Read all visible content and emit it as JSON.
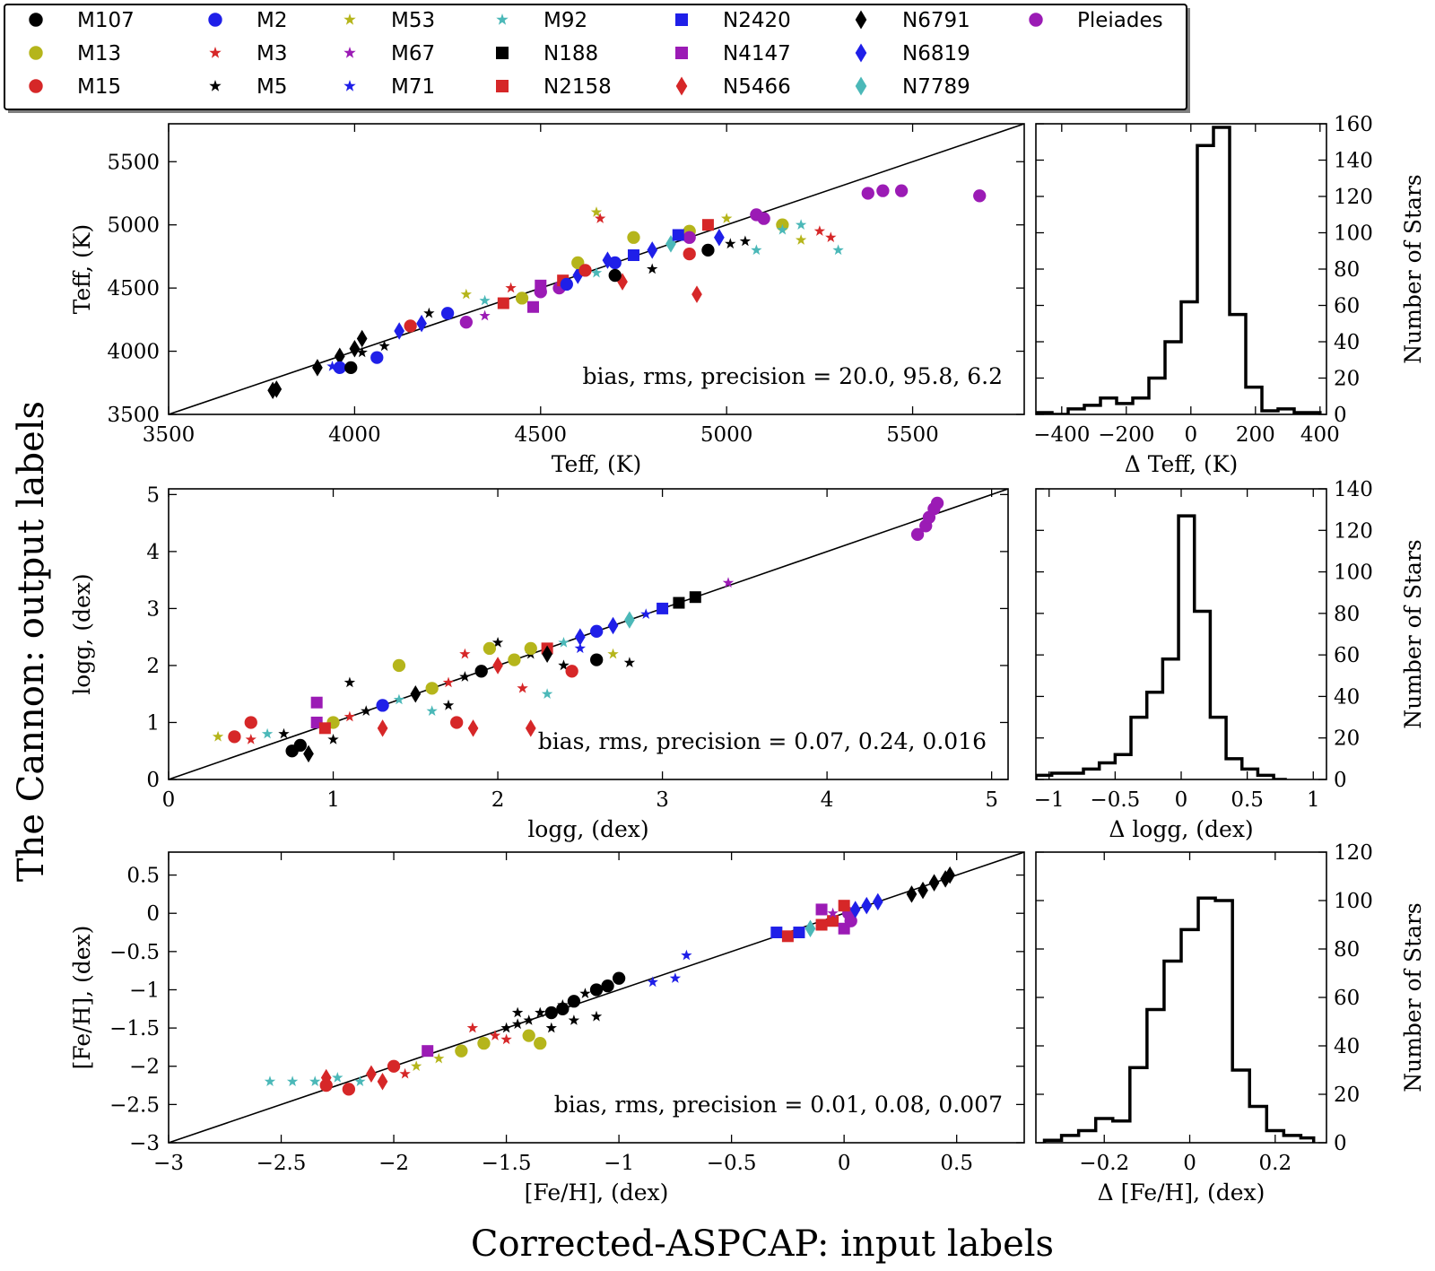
{
  "figure": {
    "ylabel": "The Cannon: output labels",
    "xlabel": "Corrected-ASPCAP: input labels"
  },
  "legend": {
    "placement": "top",
    "entries": [
      {
        "name": "M107",
        "color": "#000000",
        "marker": "circle"
      },
      {
        "name": "M13",
        "color": "#b5b51b",
        "marker": "circle"
      },
      {
        "name": "M15",
        "color": "#d62728",
        "marker": "circle"
      },
      {
        "name": "M2",
        "color": "#1f1fe8",
        "marker": "circle"
      },
      {
        "name": "M3",
        "color": "#d62728",
        "marker": "star"
      },
      {
        "name": "M5",
        "color": "#000000",
        "marker": "star"
      },
      {
        "name": "M53",
        "color": "#b5b51b",
        "marker": "star"
      },
      {
        "name": "M67",
        "color": "#9b1bb5",
        "marker": "star"
      },
      {
        "name": "M71",
        "color": "#1f1fe8",
        "marker": "star"
      },
      {
        "name": "M92",
        "color": "#4bb8b8",
        "marker": "star"
      },
      {
        "name": "N188",
        "color": "#000000",
        "marker": "square"
      },
      {
        "name": "N2158",
        "color": "#d62728",
        "marker": "square"
      },
      {
        "name": "N2420",
        "color": "#1f1fe8",
        "marker": "square"
      },
      {
        "name": "N4147",
        "color": "#9b1bb5",
        "marker": "square"
      },
      {
        "name": "N5466",
        "color": "#d62728",
        "marker": "diamond"
      },
      {
        "name": "N6791",
        "color": "#000000",
        "marker": "diamond"
      },
      {
        "name": "N6819",
        "color": "#1f1fe8",
        "marker": "diamond"
      },
      {
        "name": "N7789",
        "color": "#4bb8b8",
        "marker": "diamond"
      },
      {
        "name": "Pleiades",
        "color": "#9b1bb5",
        "marker": "circle"
      }
    ]
  },
  "chart_data": [
    {
      "type": "scatter",
      "xlabel": "Teff, (K)",
      "ylabel": "Teff, (K)",
      "xlim": [
        3500,
        5800
      ],
      "ylim": [
        3500,
        5800
      ],
      "xticks": [
        3500,
        4000,
        4500,
        5000,
        5500
      ],
      "yticks": [
        3500,
        4000,
        4500,
        5000,
        5500
      ],
      "one_to_one_line": true,
      "annotation": "bias, rms, precision = 20.0, 95.8, 6.2",
      "points": [
        [
          3780,
          3690,
          "N6791"
        ],
        [
          3790,
          3700,
          "N6791"
        ],
        [
          3900,
          3870,
          "N6791"
        ],
        [
          3960,
          3960,
          "N6791"
        ],
        [
          4000,
          4020,
          "N6791"
        ],
        [
          4020,
          4100,
          "N6791"
        ],
        [
          3960,
          3870,
          "M2"
        ],
        [
          3990,
          3870,
          "M107"
        ],
        [
          4060,
          3950,
          "M2"
        ],
        [
          3940,
          3880,
          "M71"
        ],
        [
          4020,
          3990,
          "M5"
        ],
        [
          4080,
          4040,
          "M5"
        ],
        [
          4120,
          4160,
          "N6819"
        ],
        [
          4180,
          4220,
          "N6819"
        ],
        [
          4250,
          4300,
          "M2"
        ],
        [
          4300,
          4230,
          "Pleiades"
        ],
        [
          4350,
          4280,
          "M67"
        ],
        [
          4400,
          4380,
          "N2158"
        ],
        [
          4450,
          4420,
          "M13"
        ],
        [
          4500,
          4520,
          "N4147"
        ],
        [
          4550,
          4500,
          "Pleiades"
        ],
        [
          4600,
          4600,
          "N6819"
        ],
        [
          4650,
          4620,
          "M92"
        ],
        [
          4700,
          4700,
          "M2"
        ],
        [
          4750,
          4760,
          "N2420"
        ],
        [
          4800,
          4800,
          "N6819"
        ],
        [
          4850,
          4850,
          "N7789"
        ],
        [
          4900,
          4950,
          "M13"
        ],
        [
          4950,
          5000,
          "N2158"
        ],
        [
          5000,
          5050,
          "M53"
        ],
        [
          5080,
          5080,
          "Pleiades"
        ],
        [
          5100,
          5050,
          "Pleiades"
        ],
        [
          5150,
          5000,
          "M13"
        ],
        [
          5200,
          5000,
          "M92"
        ],
        [
          5250,
          4950,
          "M3"
        ],
        [
          5280,
          4900,
          "M3"
        ],
        [
          5300,
          4800,
          "M92"
        ],
        [
          5380,
          5250,
          "Pleiades"
        ],
        [
          5420,
          5270,
          "Pleiades"
        ],
        [
          5470,
          5270,
          "Pleiades"
        ],
        [
          5680,
          5230,
          "Pleiades"
        ],
        [
          4650,
          5100,
          "M53"
        ],
        [
          4660,
          5050,
          "M3"
        ],
        [
          4720,
          4550,
          "N5466"
        ],
        [
          4920,
          4450,
          "N5466"
        ],
        [
          4900,
          4770,
          "M15"
        ],
        [
          4950,
          4800,
          "M107"
        ],
        [
          5010,
          4850,
          "M5"
        ],
        [
          5050,
          4870,
          "M5"
        ],
        [
          5080,
          4800,
          "M92"
        ],
        [
          4560,
          4560,
          "N2158"
        ],
        [
          4600,
          4700,
          "M13"
        ],
        [
          4620,
          4640,
          "M15"
        ],
        [
          4300,
          4450,
          "M53"
        ],
        [
          4350,
          4400,
          "M92"
        ],
        [
          4420,
          4500,
          "M3"
        ],
        [
          4480,
          4350,
          "N4147"
        ],
        [
          4200,
          4300,
          "M5"
        ],
        [
          4150,
          4200,
          "M15"
        ],
        [
          4900,
          4900,
          "Pleiades"
        ],
        [
          4980,
          4900,
          "N6819"
        ],
        [
          4870,
          4920,
          "N2420"
        ],
        [
          5150,
          4960,
          "M92"
        ],
        [
          5200,
          4880,
          "M53"
        ],
        [
          4750,
          4900,
          "M13"
        ],
        [
          4800,
          4650,
          "M5"
        ],
        [
          4700,
          4600,
          "M107"
        ],
        [
          4680,
          4720,
          "N6819"
        ],
        [
          4500,
          4470,
          "Pleiades"
        ],
        [
          4570,
          4530,
          "M2"
        ]
      ]
    },
    {
      "type": "scatter",
      "xlabel": "logg, (dex)",
      "ylabel": "logg, (dex)",
      "xlim": [
        0,
        5.1
      ],
      "ylim": [
        0,
        5.1
      ],
      "xticks": [
        0,
        1,
        2,
        3,
        4,
        5
      ],
      "yticks": [
        0,
        1,
        2,
        3,
        4,
        5
      ],
      "one_to_one_line": true,
      "annotation": "bias, rms, precision = 0.07, 0.24, 0.016",
      "points": [
        [
          0.3,
          0.75,
          "M53"
        ],
        [
          0.4,
          0.75,
          "M15"
        ],
        [
          0.5,
          0.7,
          "M3"
        ],
        [
          0.6,
          0.8,
          "M92"
        ],
        [
          0.7,
          0.8,
          "M5"
        ],
        [
          0.75,
          0.5,
          "M107"
        ],
        [
          0.8,
          0.6,
          "M107"
        ],
        [
          0.85,
          0.45,
          "N6791"
        ],
        [
          0.9,
          1.0,
          "N4147"
        ],
        [
          1.0,
          1.0,
          "M13"
        ],
        [
          1.1,
          1.1,
          "M3"
        ],
        [
          1.2,
          1.2,
          "M5"
        ],
        [
          1.3,
          1.3,
          "M2"
        ],
        [
          1.4,
          1.4,
          "M92"
        ],
        [
          1.5,
          1.5,
          "N6791"
        ],
        [
          1.6,
          1.6,
          "M13"
        ],
        [
          1.7,
          1.7,
          "M3"
        ],
        [
          1.8,
          1.8,
          "M5"
        ],
        [
          1.9,
          1.9,
          "M107"
        ],
        [
          2.0,
          2.0,
          "N5466"
        ],
        [
          2.1,
          2.1,
          "M13"
        ],
        [
          2.2,
          2.2,
          "M5"
        ],
        [
          2.3,
          2.3,
          "N2158"
        ],
        [
          2.4,
          2.4,
          "M92"
        ],
        [
          2.5,
          2.5,
          "N6819"
        ],
        [
          2.6,
          2.6,
          "M2"
        ],
        [
          2.7,
          2.7,
          "N6819"
        ],
        [
          2.8,
          2.8,
          "N7789"
        ],
        [
          2.9,
          2.9,
          "M71"
        ],
        [
          3.0,
          3.0,
          "N2420"
        ],
        [
          3.1,
          3.1,
          "N188"
        ],
        [
          3.2,
          3.2,
          "N188"
        ],
        [
          3.4,
          3.45,
          "M67"
        ],
        [
          4.55,
          4.3,
          "Pleiades"
        ],
        [
          4.6,
          4.45,
          "Pleiades"
        ],
        [
          4.62,
          4.6,
          "Pleiades"
        ],
        [
          4.65,
          4.75,
          "Pleiades"
        ],
        [
          4.67,
          4.85,
          "Pleiades"
        ],
        [
          1.8,
          2.2,
          "M3"
        ],
        [
          2.0,
          2.4,
          "M5"
        ],
        [
          2.2,
          2.3,
          "M13"
        ],
        [
          2.4,
          2.0,
          "M5"
        ],
        [
          2.6,
          2.1,
          "M107"
        ],
        [
          2.8,
          2.05,
          "M5"
        ],
        [
          1.85,
          0.9,
          "N5466"
        ],
        [
          1.75,
          1.0,
          "M15"
        ],
        [
          2.3,
          1.5,
          "M92"
        ],
        [
          0.9,
          1.35,
          "N4147"
        ],
        [
          0.5,
          1.0,
          "M15"
        ],
        [
          1.1,
          1.7,
          "M5"
        ],
        [
          1.3,
          0.9,
          "N5466"
        ],
        [
          2.2,
          0.9,
          "N5466"
        ],
        [
          1.6,
          1.2,
          "M92"
        ],
        [
          1.4,
          2.0,
          "M13"
        ],
        [
          2.45,
          1.9,
          "M15"
        ],
        [
          2.7,
          2.2,
          "M53"
        ],
        [
          1.95,
          2.3,
          "M13"
        ],
        [
          2.15,
          1.6,
          "M3"
        ],
        [
          2.5,
          2.3,
          "M71"
        ],
        [
          1.0,
          0.7,
          "M5"
        ],
        [
          0.95,
          0.9,
          "N2158"
        ],
        [
          1.7,
          1.3,
          "M5"
        ],
        [
          2.3,
          2.2,
          "N6791"
        ]
      ]
    },
    {
      "type": "scatter",
      "xlabel": "[Fe/H], (dex)",
      "ylabel": "[Fe/H], (dex)",
      "xlim": [
        -3.0,
        0.8
      ],
      "ylim": [
        -3.0,
        0.8
      ],
      "xticks": [
        -3.0,
        -2.5,
        -2.0,
        -1.5,
        -1.0,
        -0.5,
        0.0,
        0.5
      ],
      "yticks": [
        -3.0,
        -2.5,
        -2.0,
        -1.5,
        -1.0,
        -0.5,
        0.0,
        0.5
      ],
      "one_to_one_line": true,
      "annotation": "bias, rms, precision = 0.01, 0.08, 0.007",
      "points": [
        [
          -2.55,
          -2.2,
          "M92"
        ],
        [
          -2.45,
          -2.2,
          "M92"
        ],
        [
          -2.35,
          -2.2,
          "M92"
        ],
        [
          -2.3,
          -2.25,
          "M15"
        ],
        [
          -2.25,
          -2.15,
          "M92"
        ],
        [
          -2.2,
          -2.3,
          "M15"
        ],
        [
          -2.15,
          -2.2,
          "M92"
        ],
        [
          -2.1,
          -2.1,
          "N5466"
        ],
        [
          -2.05,
          -2.2,
          "N5466"
        ],
        [
          -2.0,
          -2.0,
          "M15"
        ],
        [
          -1.9,
          -2.0,
          "M53"
        ],
        [
          -1.85,
          -1.8,
          "N4147"
        ],
        [
          -1.8,
          -1.9,
          "M53"
        ],
        [
          -1.7,
          -1.8,
          "M13"
        ],
        [
          -1.6,
          -1.7,
          "M13"
        ],
        [
          -1.55,
          -1.6,
          "M3"
        ],
        [
          -1.5,
          -1.5,
          "M5"
        ],
        [
          -1.45,
          -1.45,
          "M5"
        ],
        [
          -1.4,
          -1.4,
          "M5"
        ],
        [
          -1.35,
          -1.3,
          "M5"
        ],
        [
          -1.3,
          -1.3,
          "M107"
        ],
        [
          -1.25,
          -1.25,
          "M107"
        ],
        [
          -1.2,
          -1.15,
          "M107"
        ],
        [
          -1.1,
          -1.0,
          "M107"
        ],
        [
          -1.05,
          -0.95,
          "M107"
        ],
        [
          -1.0,
          -0.85,
          "M107"
        ],
        [
          -0.85,
          -0.9,
          "M71"
        ],
        [
          -0.75,
          -0.85,
          "M71"
        ],
        [
          -0.7,
          -0.55,
          "M71"
        ],
        [
          -0.3,
          -0.25,
          "N2420"
        ],
        [
          -0.25,
          -0.3,
          "N2158"
        ],
        [
          -0.2,
          -0.25,
          "N2420"
        ],
        [
          -0.15,
          -0.2,
          "N7789"
        ],
        [
          -0.1,
          -0.15,
          "N2158"
        ],
        [
          -0.05,
          -0.1,
          "N2158"
        ],
        [
          0.0,
          -0.2,
          "N4147"
        ],
        [
          0.02,
          0.0,
          "Pleiades"
        ],
        [
          0.03,
          -0.1,
          "Pleiades"
        ],
        [
          0.05,
          0.05,
          "N6819"
        ],
        [
          0.1,
          0.1,
          "N6819"
        ],
        [
          0.15,
          0.15,
          "N6819"
        ],
        [
          0.3,
          0.25,
          "N6791"
        ],
        [
          0.35,
          0.3,
          "N6791"
        ],
        [
          0.4,
          0.4,
          "N6791"
        ],
        [
          0.45,
          0.45,
          "N6791"
        ],
        [
          0.47,
          0.5,
          "N6791"
        ],
        [
          -1.3,
          -1.5,
          "M5"
        ],
        [
          -1.2,
          -1.4,
          "M5"
        ],
        [
          -1.1,
          -1.35,
          "M5"
        ],
        [
          -1.5,
          -1.65,
          "M3"
        ],
        [
          -1.65,
          -1.5,
          "M3"
        ],
        [
          -1.4,
          -1.6,
          "M13"
        ],
        [
          -1.35,
          -1.7,
          "M13"
        ],
        [
          -1.25,
          -1.2,
          "M5"
        ],
        [
          -2.3,
          -2.15,
          "N5466"
        ],
        [
          -1.95,
          -2.1,
          "M3"
        ],
        [
          -0.05,
          0.0,
          "M67"
        ],
        [
          -0.1,
          0.05,
          "N4147"
        ],
        [
          0.0,
          0.1,
          "N2158"
        ],
        [
          -1.45,
          -1.3,
          "M5"
        ],
        [
          -1.15,
          -1.05,
          "M5"
        ]
      ]
    },
    {
      "type": "bar",
      "subtype": "histogram",
      "xlabel": "Δ Teff, (K)",
      "ylabel": "Number of Stars",
      "xlim": [
        -480,
        420
      ],
      "ylim": [
        0,
        160
      ],
      "xticks": [
        -400,
        -200,
        0,
        200,
        400
      ],
      "yticks": [
        0,
        20,
        40,
        60,
        80,
        100,
        120,
        140,
        160
      ],
      "bin_edges": [
        -480,
        -430,
        -380,
        -330,
        -280,
        -230,
        -180,
        -130,
        -80,
        -30,
        20,
        70,
        120,
        170,
        220,
        270,
        320,
        370,
        400
      ],
      "values": [
        1,
        0,
        3,
        5,
        9,
        6,
        9,
        20,
        40,
        62,
        148,
        158,
        55,
        15,
        2,
        3,
        1,
        1
      ]
    },
    {
      "type": "bar",
      "subtype": "histogram",
      "xlabel": "Δ logg, (dex)",
      "ylabel": "Number of Stars",
      "xlim": [
        -1.1,
        1.1
      ],
      "ylim": [
        0,
        140
      ],
      "xticks": [
        -1.0,
        -0.5,
        0.0,
        0.5,
        1.0
      ],
      "yticks": [
        0,
        20,
        40,
        60,
        80,
        100,
        120,
        140
      ],
      "bin_edges": [
        -1.1,
        -0.98,
        -0.86,
        -0.74,
        -0.62,
        -0.5,
        -0.38,
        -0.26,
        -0.14,
        -0.02,
        0.1,
        0.22,
        0.34,
        0.46,
        0.58,
        0.7,
        0.8
      ],
      "values": [
        2,
        3,
        3,
        5,
        8,
        12,
        30,
        42,
        58,
        127,
        81,
        30,
        10,
        5,
        2,
        0
      ]
    },
    {
      "type": "bar",
      "subtype": "histogram",
      "xlabel": "Δ [Fe/H], (dex)",
      "ylabel": "Number of Stars",
      "xlim": [
        -0.36,
        0.32
      ],
      "ylim": [
        0,
        120
      ],
      "xticks": [
        -0.2,
        0.0,
        0.2
      ],
      "yticks": [
        0,
        20,
        40,
        60,
        80,
        100,
        120
      ],
      "bin_edges": [
        -0.34,
        -0.3,
        -0.26,
        -0.22,
        -0.18,
        -0.14,
        -0.1,
        -0.06,
        -0.02,
        0.02,
        0.06,
        0.1,
        0.14,
        0.18,
        0.22,
        0.26,
        0.29
      ],
      "values": [
        1,
        3,
        5,
        10,
        9,
        31,
        55,
        75,
        88,
        101,
        100,
        30,
        15,
        5,
        3,
        2
      ]
    }
  ]
}
